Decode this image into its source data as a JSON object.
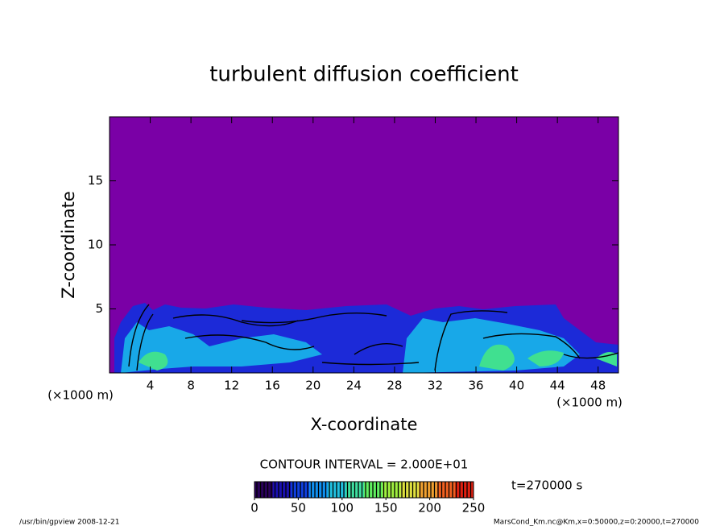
{
  "chart_data": {
    "type": "contour",
    "title": "turbulent diffusion coefficient",
    "xlabel": "X-coordinate",
    "ylabel": "Z-coordinate",
    "x_unit": "(×1000 m)",
    "y_unit": "(×1000 m)",
    "xlim": [
      0,
      50
    ],
    "ylim": [
      0,
      20
    ],
    "xticks": [
      4,
      8,
      12,
      16,
      20,
      24,
      28,
      32,
      36,
      40,
      44,
      48
    ],
    "yticks": [
      5,
      10,
      15
    ],
    "background_color": "#7a00a6",
    "contour_interval_label": "CONTOUR INTERVAL = 2.000E+01",
    "time_label": "t=270000 s",
    "colorbar": {
      "lim": [
        0,
        250
      ],
      "ticks": [
        0,
        50,
        100,
        150,
        200,
        250
      ],
      "colors": [
        "#2a005a",
        "#1a10b0",
        "#1040e0",
        "#1090f0",
        "#20c0e0",
        "#40e0a0",
        "#60f060",
        "#a0f040",
        "#e0e040",
        "#f0a030",
        "#f06020",
        "#e02010"
      ]
    }
  },
  "footer": {
    "left": "/usr/bin/gpview   2008-12-21",
    "right": "MarsCond_Km.nc@Km,x=0:50000,z=0:20000,t=270000"
  }
}
